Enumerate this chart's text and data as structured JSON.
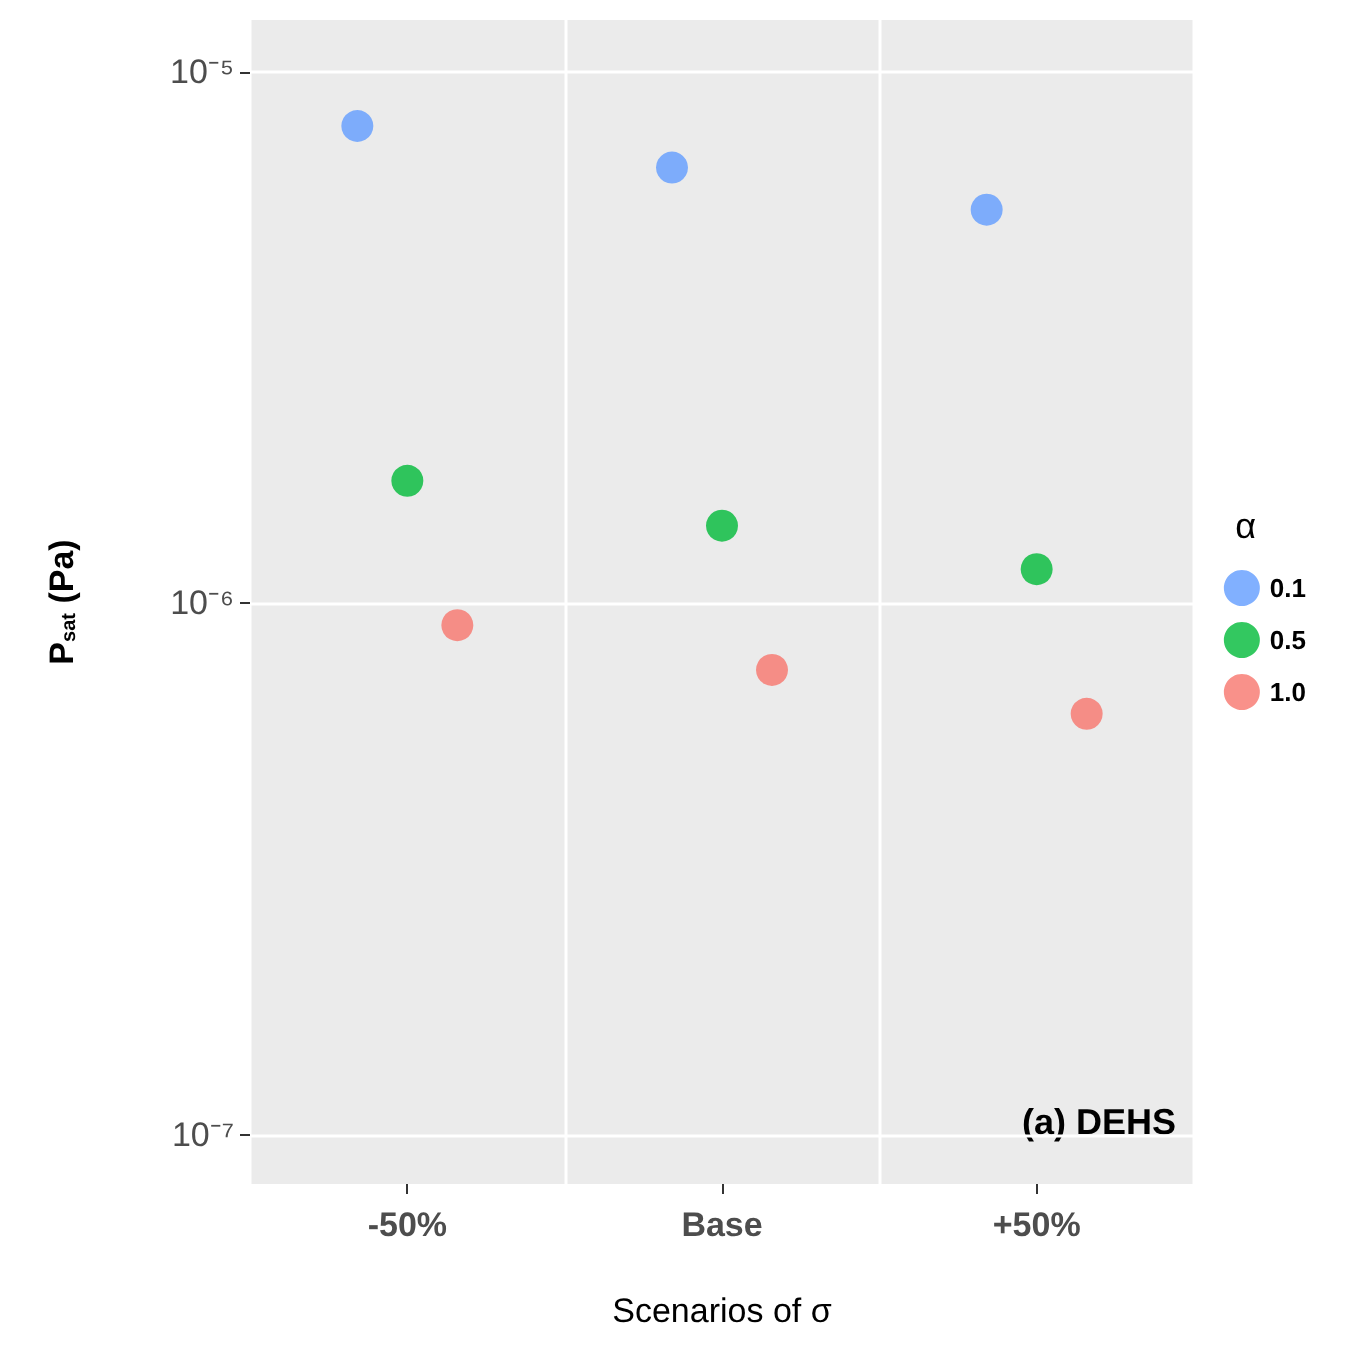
{
  "chart_data": {
    "type": "scatter",
    "xlabel": "Scenarios of σ",
    "ylabel": "P$_{sat}$ (Pa)",
    "legend_title": "α",
    "categories": [
      "-50%",
      "Base",
      "+50%"
    ],
    "series": [
      {
        "name": "0.1",
        "color": "#619cff",
        "values": [
          7.9e-06,
          6.6e-06,
          5.5e-06
        ]
      },
      {
        "name": "0.5",
        "color": "#00ba38",
        "values": [
          1.7e-06,
          1.4e-06,
          1.16e-06
        ]
      },
      {
        "name": "1.0",
        "color": "#f8766d",
        "values": [
          9.1e-07,
          7.5e-07,
          6.2e-07
        ]
      }
    ],
    "log": "y",
    "ylim": [
      8.1e-08,
      1.25e-05
    ],
    "yticks": [
      {
        "value": 1e-07,
        "label": "10⁻⁷"
      },
      {
        "value": 1e-06,
        "label": "10⁻⁶"
      },
      {
        "value": 1e-05,
        "label": "10⁻⁵"
      }
    ],
    "grid": true,
    "legend": "right",
    "marker": "circle",
    "annotations": [
      "(a) DEHS"
    ]
  }
}
